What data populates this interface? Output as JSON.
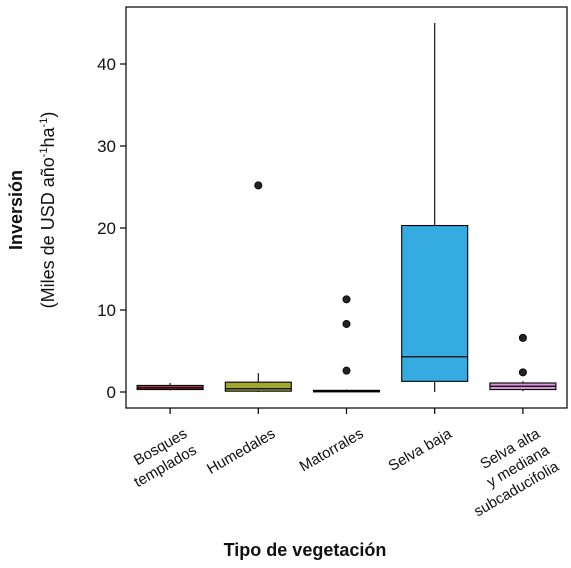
{
  "chart_data": {
    "type": "box",
    "xlabel": "Tipo de vegetación",
    "ylabel_bold": "Inversión",
    "ylabel_main": "(Miles de USD año",
    "ylabel_sup1": "-1",
    "ylabel_mid": "ha",
    "ylabel_sup2": "-1",
    "ylabel_end": ")",
    "ylim": [
      -1.5,
      46
    ],
    "yticks": [
      0,
      10,
      20,
      30,
      40
    ],
    "grid": false,
    "categories": [
      {
        "lines": [
          "Bosques",
          "templados"
        ],
        "color": "#a83a46",
        "min": 0.2,
        "q1": 0.3,
        "median": 0.5,
        "q3": 0.8,
        "max": 1.1,
        "outliers": []
      },
      {
        "lines": [
          "Humedales"
        ],
        "color": "#a1a633",
        "min": 0.0,
        "q1": 0.1,
        "median": 0.4,
        "q3": 1.2,
        "max": 2.3,
        "outliers": [
          25.2
        ]
      },
      {
        "lines": [
          "Matorrales"
        ],
        "color": "#27a45a",
        "min": 0.0,
        "q1": 0.05,
        "median": 0.1,
        "q3": 0.2,
        "max": 0.3,
        "outliers": [
          2.6,
          8.3,
          11.3
        ]
      },
      {
        "lines": [
          "Selva baja"
        ],
        "color": "#34ace1",
        "min": 0.0,
        "q1": 1.3,
        "median": 4.3,
        "q3": 20.3,
        "max": 45.0,
        "outliers": []
      },
      {
        "lines": [
          "Selva alta",
          "y mediana",
          "subcaducifolia"
        ],
        "color": "#d996d6",
        "min": 0.1,
        "q1": 0.3,
        "median": 0.7,
        "q3": 1.1,
        "max": 1.3,
        "outliers": [
          2.4,
          6.6
        ]
      }
    ]
  }
}
